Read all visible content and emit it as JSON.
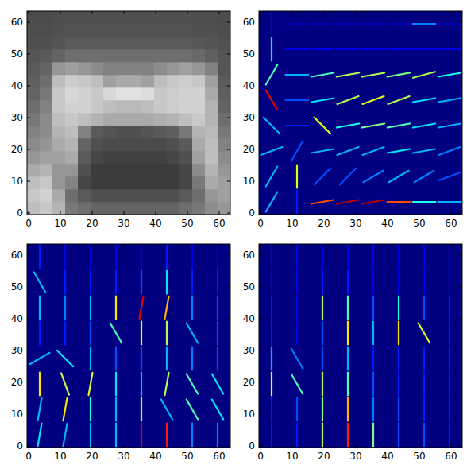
{
  "chart_data": [
    {
      "type": "image",
      "xlim": [
        -0.5,
        63.5
      ],
      "ylim": [
        63.5,
        -0.5
      ],
      "xticks": [
        0,
        10,
        20,
        30,
        40,
        50,
        60
      ],
      "yticks": [
        0,
        10,
        20,
        30,
        40,
        50,
        60
      ],
      "color_range": [
        0,
        255
      ],
      "cells": [
        [
          190,
          200,
          180,
          120,
          110,
          100,
          100,
          100,
          100,
          100,
          100,
          100,
          110,
          120,
          140,
          150
        ],
        [
          200,
          210,
          170,
          110,
          90,
          80,
          80,
          80,
          80,
          80,
          80,
          80,
          90,
          110,
          150,
          160
        ],
        [
          190,
          200,
          150,
          130,
          70,
          60,
          60,
          60,
          60,
          60,
          60,
          60,
          70,
          120,
          170,
          160
        ],
        [
          170,
          180,
          150,
          150,
          80,
          60,
          60,
          60,
          60,
          60,
          60,
          60,
          70,
          140,
          180,
          150
        ],
        [
          150,
          160,
          160,
          170,
          90,
          70,
          65,
          65,
          65,
          65,
          65,
          70,
          80,
          160,
          190,
          140
        ],
        [
          140,
          150,
          170,
          180,
          100,
          80,
          75,
          75,
          75,
          75,
          75,
          80,
          90,
          170,
          190,
          130
        ],
        [
          130,
          140,
          180,
          190,
          130,
          90,
          85,
          80,
          80,
          85,
          90,
          95,
          120,
          180,
          185,
          120
        ],
        [
          120,
          140,
          190,
          200,
          190,
          180,
          170,
          170,
          170,
          170,
          175,
          180,
          190,
          200,
          180,
          110
        ],
        [
          110,
          130,
          200,
          210,
          210,
          200,
          190,
          185,
          185,
          190,
          200,
          205,
          210,
          210,
          180,
          100
        ],
        [
          100,
          120,
          200,
          215,
          210,
          200,
          215,
          225,
          225,
          220,
          200,
          205,
          210,
          210,
          170,
          95
        ],
        [
          95,
          110,
          190,
          205,
          200,
          190,
          160,
          170,
          170,
          160,
          190,
          200,
          205,
          200,
          160,
          90
        ],
        [
          90,
          100,
          150,
          160,
          150,
          140,
          130,
          130,
          130,
          130,
          140,
          150,
          160,
          150,
          130,
          85
        ],
        [
          85,
          90,
          100,
          110,
          110,
          110,
          110,
          110,
          110,
          110,
          110,
          110,
          110,
          105,
          95,
          85
        ],
        [
          80,
          80,
          85,
          90,
          90,
          90,
          90,
          90,
          90,
          90,
          90,
          90,
          90,
          88,
          85,
          80
        ],
        [
          78,
          78,
          80,
          82,
          82,
          82,
          82,
          82,
          82,
          82,
          82,
          82,
          82,
          80,
          80,
          78
        ],
        [
          76,
          76,
          78,
          80,
          80,
          80,
          80,
          80,
          80,
          80,
          80,
          80,
          80,
          78,
          78,
          76
        ]
      ]
    },
    {
      "type": "hog",
      "xlim": [
        -0.5,
        63.5
      ],
      "ylim": [
        63.5,
        -0.5
      ],
      "xticks": [
        0,
        10,
        20,
        30,
        40,
        50,
        60
      ],
      "yticks": [
        0,
        10,
        20,
        30,
        40,
        50,
        60
      ],
      "color_range": [
        0,
        1
      ],
      "cells": [
        [
          [
            60,
            0.3
          ],
          [
            90,
            0.15
          ],
          [
            10,
            0.8
          ],
          [
            10,
            0.95
          ],
          [
            10,
            0.95
          ],
          [
            0,
            0.8
          ],
          [
            0,
            0.4
          ],
          [
            0,
            0.3
          ]
        ],
        [
          [
            60,
            0.3
          ],
          [
            90,
            0.6
          ],
          [
            45,
            0.2
          ],
          [
            45,
            0.2
          ],
          [
            30,
            0.25
          ],
          [
            30,
            0.3
          ],
          [
            30,
            0.25
          ],
          [
            20,
            0.2
          ]
        ],
        [
          [
            20,
            0.3
          ],
          [
            60,
            0.2
          ],
          [
            10,
            0.3
          ],
          [
            20,
            0.3
          ],
          [
            20,
            0.3
          ],
          [
            10,
            0.35
          ],
          [
            10,
            0.3
          ],
          [
            20,
            0.25
          ]
        ],
        [
          [
            -45,
            0.3
          ],
          [
            0,
            0.15
          ],
          [
            -45,
            0.6
          ],
          [
            10,
            0.4
          ],
          [
            10,
            0.5
          ],
          [
            10,
            0.45
          ],
          [
            10,
            0.35
          ],
          [
            10,
            0.3
          ]
        ],
        [
          [
            -60,
            0.9
          ],
          [
            0,
            0.2
          ],
          [
            10,
            0.35
          ],
          [
            20,
            0.55
          ],
          [
            20,
            0.6
          ],
          [
            20,
            0.55
          ],
          [
            10,
            0.35
          ],
          [
            10,
            0.3
          ]
        ],
        [
          [
            60,
            0.45
          ],
          [
            0,
            0.3
          ],
          [
            10,
            0.45
          ],
          [
            10,
            0.55
          ],
          [
            10,
            0.55
          ],
          [
            10,
            0.5
          ],
          [
            15,
            0.55
          ],
          [
            10,
            0.4
          ]
        ],
        [
          [
            90,
            0.35
          ],
          [
            0,
            0.1
          ],
          [
            0,
            0.1
          ],
          [
            0,
            0.1
          ],
          [
            0,
            0.1
          ],
          [
            0,
            0.1
          ],
          [
            0,
            0.1
          ],
          [
            0,
            0.1
          ]
        ],
        [
          [
            90,
            0.1
          ],
          [
            0,
            0.05
          ],
          [
            0,
            0.05
          ],
          [
            0,
            0.05
          ],
          [
            0,
            0.05
          ],
          [
            0,
            0.05
          ],
          [
            0,
            0.25
          ],
          [
            0,
            0.05
          ]
        ]
      ]
    },
    {
      "type": "hog",
      "xlim": [
        -0.5,
        63.5
      ],
      "ylim": [
        63.5,
        -0.5
      ],
      "xticks": [
        0,
        10,
        20,
        30,
        40,
        50,
        60
      ],
      "yticks": [
        0,
        10,
        20,
        30,
        40,
        50,
        60
      ],
      "color_range": [
        0,
        1
      ],
      "cells": [
        [
          [
            80,
            0.35
          ],
          [
            80,
            0.3
          ],
          [
            90,
            0.3
          ],
          [
            90,
            0.3
          ],
          [
            90,
            0.9
          ],
          [
            90,
            0.85
          ],
          [
            90,
            0.25
          ],
          [
            90,
            0.25
          ]
        ],
        [
          [
            80,
            0.3
          ],
          [
            80,
            0.65
          ],
          [
            90,
            0.4
          ],
          [
            90,
            0.3
          ],
          [
            90,
            0.55
          ],
          [
            -60,
            0.3
          ],
          [
            -60,
            0.45
          ],
          [
            -60,
            0.35
          ]
        ],
        [
          [
            90,
            0.65
          ],
          [
            -70,
            0.55
          ],
          [
            80,
            0.6
          ],
          [
            90,
            0.35
          ],
          [
            90,
            0.3
          ],
          [
            80,
            0.55
          ],
          [
            -60,
            0.45
          ],
          [
            -60,
            0.35
          ]
        ],
        [
          [
            30,
            0.3
          ],
          [
            -45,
            0.35
          ],
          [
            90,
            0.3
          ],
          [
            90,
            0.2
          ],
          [
            90,
            0.2
          ],
          [
            90,
            0.3
          ],
          [
            90,
            0.25
          ],
          [
            90,
            0.2
          ]
        ],
        [
          [
            90,
            0.15
          ],
          [
            90,
            0.15
          ],
          [
            90,
            0.2
          ],
          [
            -60,
            0.45
          ],
          [
            90,
            0.6
          ],
          [
            90,
            0.55
          ],
          [
            -60,
            0.3
          ],
          [
            90,
            0.2
          ]
        ],
        [
          [
            90,
            0.3
          ],
          [
            90,
            0.25
          ],
          [
            90,
            0.3
          ],
          [
            90,
            0.65
          ],
          [
            80,
            0.9
          ],
          [
            80,
            0.7
          ],
          [
            90,
            0.25
          ],
          [
            90,
            0.2
          ]
        ],
        [
          [
            -60,
            0.3
          ],
          [
            90,
            0.15
          ],
          [
            90,
            0.15
          ],
          [
            90,
            0.15
          ],
          [
            90,
            0.2
          ],
          [
            90,
            0.35
          ],
          [
            90,
            0.15
          ],
          [
            90,
            0.15
          ]
        ],
        [
          [
            90,
            0.15
          ],
          [
            90,
            0.1
          ],
          [
            90,
            0.1
          ],
          [
            90,
            0.1
          ],
          [
            90,
            0.1
          ],
          [
            90,
            0.15
          ],
          [
            90,
            0.1
          ],
          [
            90,
            0.1
          ]
        ]
      ]
    },
    {
      "type": "hog",
      "xlim": [
        -0.5,
        63.5
      ],
      "ylim": [
        63.5,
        -0.5
      ],
      "xticks": [
        0,
        10,
        20,
        30,
        40,
        50,
        60
      ],
      "yticks": [
        0,
        10,
        20,
        30,
        40,
        50,
        60
      ],
      "color_range": [
        0,
        1
      ],
      "cells": [
        [
          [
            90,
            0.15
          ],
          [
            90,
            0.15
          ],
          [
            90,
            0.55
          ],
          [
            90,
            0.85
          ],
          [
            90,
            0.5
          ],
          [
            90,
            0.2
          ],
          [
            90,
            0.2
          ],
          [
            90,
            0.15
          ]
        ],
        [
          [
            90,
            0.15
          ],
          [
            90,
            0.2
          ],
          [
            90,
            0.5
          ],
          [
            90,
            0.7
          ],
          [
            90,
            0.25
          ],
          [
            90,
            0.2
          ],
          [
            90,
            0.15
          ],
          [
            90,
            0.15
          ]
        ],
        [
          [
            90,
            0.6
          ],
          [
            -60,
            0.45
          ],
          [
            90,
            0.55
          ],
          [
            90,
            0.45
          ],
          [
            90,
            0.2
          ],
          [
            90,
            0.15
          ],
          [
            90,
            0.15
          ],
          [
            90,
            0.15
          ]
        ],
        [
          [
            90,
            0.3
          ],
          [
            -60,
            0.25
          ],
          [
            90,
            0.2
          ],
          [
            90,
            0.3
          ],
          [
            90,
            0.15
          ],
          [
            90,
            0.15
          ],
          [
            90,
            0.15
          ],
          [
            90,
            0.15
          ]
        ],
        [
          [
            90,
            0.15
          ],
          [
            90,
            0.1
          ],
          [
            90,
            0.2
          ],
          [
            90,
            0.65
          ],
          [
            90,
            0.3
          ],
          [
            90,
            0.65
          ],
          [
            -60,
            0.6
          ],
          [
            90,
            0.15
          ]
        ],
        [
          [
            90,
            0.15
          ],
          [
            90,
            0.1
          ],
          [
            90,
            0.55
          ],
          [
            90,
            0.45
          ],
          [
            90,
            0.2
          ],
          [
            90,
            0.4
          ],
          [
            90,
            0.2
          ],
          [
            90,
            0.15
          ]
        ],
        [
          [
            90,
            0.1
          ],
          [
            90,
            0.1
          ],
          [
            90,
            0.15
          ],
          [
            90,
            0.15
          ],
          [
            90,
            0.1
          ],
          [
            90,
            0.1
          ],
          [
            90,
            0.1
          ],
          [
            90,
            0.1
          ]
        ],
        [
          [
            90,
            0.1
          ],
          [
            90,
            0.1
          ],
          [
            90,
            0.1
          ],
          [
            90,
            0.1
          ],
          [
            90,
            0.1
          ],
          [
            90,
            0.1
          ],
          [
            90,
            0.1
          ],
          [
            90,
            0.1
          ]
        ]
      ]
    }
  ]
}
